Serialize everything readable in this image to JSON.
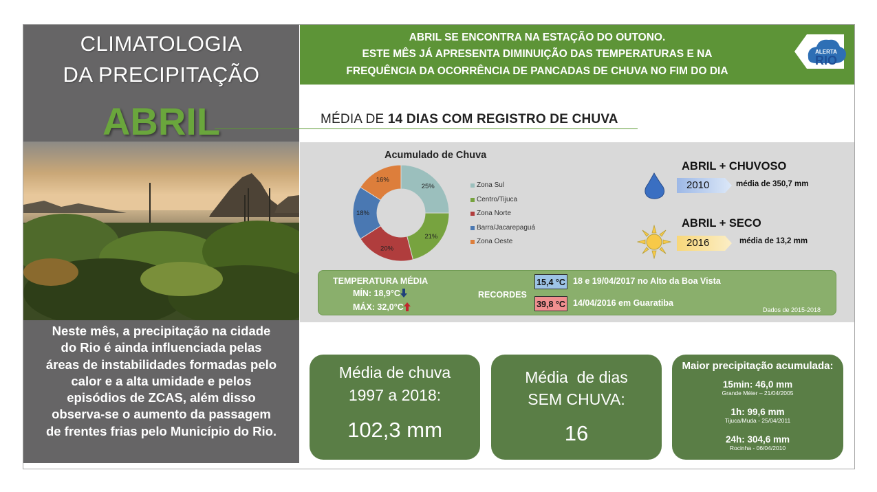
{
  "left": {
    "title_line1": "CLIMATOLOGIA",
    "title_line2": "DA PRECIPITAÇÃO",
    "month": "ABRIL",
    "description_lines": [
      "Neste mês, a precipitação na cidade",
      "do Rio é ainda influenciada pelas",
      "áreas de instabilidades formadas pelo",
      "calor e a alta umidade e pelos",
      "episódios de ZCAS, além disso",
      "observa-se o aumento da passagem",
      "de frentes frias pelo Município do Rio."
    ]
  },
  "banner": {
    "lines": [
      "ABRIL SE ENCONTRA NA ESTAÇÃO DO OUTONO.",
      "ESTE MÊS JÁ APRESENTA DIMINUIÇÃO DAS TEMPERATURAS E NA",
      "FREQUÊNCIA DA OCORRÊNCIA DE PANCADAS DE CHUVA NO FIM DO DIA"
    ],
    "logo_top": "ALERTA",
    "logo_bottom": "RIO"
  },
  "rain_days": {
    "prefix": "MÉDIA DE ",
    "highlight": "14 DIAS COM REGISTRO DE CHUVA"
  },
  "chart_data": {
    "type": "pie",
    "title": "Acumulado de Chuva",
    "categories": [
      "Zona Sul",
      "Centro/Tijuca",
      "Zona Norte",
      "Barra/Jacarepaguá",
      "Zona Oeste"
    ],
    "values": [
      25,
      21,
      20,
      18,
      16
    ],
    "value_labels": [
      "25%",
      "21%",
      "20%",
      "18%",
      "16%"
    ],
    "colors": [
      "#9bbfbd",
      "#77a33f",
      "#b03d3d",
      "#4a78b2",
      "#dd7e3b"
    ],
    "legend_position": "right"
  },
  "extremes": {
    "wettest_title": "ABRIL + CHUVOSO",
    "wettest_year": "2010",
    "wettest_note": "média de 350,7 mm",
    "driest_title": "ABRIL + SECO",
    "driest_year": "2016",
    "driest_note": "média de 13,2 mm"
  },
  "temperature": {
    "title": "TEMPERATURA MÉDIA",
    "min": "MÍN: 18,9°C",
    "max": "MÁX: 32,0°C",
    "records_label": "RECORDES",
    "record_low_value": "15,4 °C",
    "record_low_text": "18 e 19/04/2017 no Alto da Boa Vista",
    "record_high_value": "39,8 °C",
    "record_high_text": "14/04/2016 em Guaratiba",
    "period": "Dados de 2015-2018"
  },
  "cards": {
    "rain_avg_line1": "Média de chuva",
    "rain_avg_line2": "1997 a 2018:",
    "rain_avg_value": "102,3 mm",
    "dry_days_line1": "Média  de dias",
    "dry_days_line2": "SEM CHUVA:",
    "dry_days_value": "16",
    "max_title": "Maior precipitação acumulada:",
    "max_15min": "15min: 46,0 mm",
    "max_15min_place": "Grande Méier – 21/04/2005",
    "max_1h": "1h: 99,6 mm",
    "max_1h_place": "Tijuca/Muda - 25/04/2011",
    "max_24h": "24h: 304,6 mm",
    "max_24h_place": "Rocinha - 06/04/2010"
  }
}
